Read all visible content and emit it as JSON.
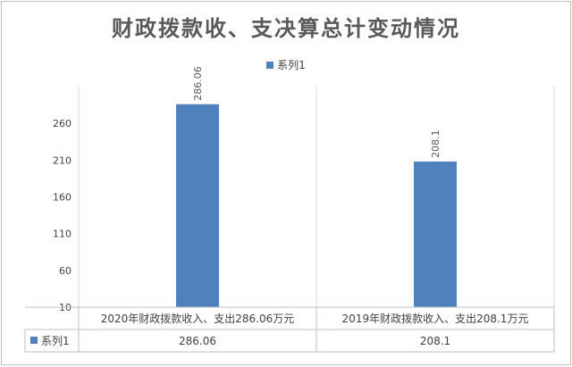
{
  "chart_data": {
    "type": "bar",
    "title": "财政拨款收、支决算总计变动情况",
    "categories": [
      "2020年财政拨款收入、支出286.06万元",
      "2019年财政拨款收入、支出208.1万元"
    ],
    "series": [
      {
        "name": "系列1",
        "values": [
          286.06,
          208.1
        ],
        "color": "#4f81bd"
      }
    ],
    "data_labels": [
      "286.06",
      "208.1"
    ],
    "table_values": [
      "286.06",
      "208.1"
    ],
    "yticks": [
      10,
      60,
      110,
      160,
      210,
      260
    ],
    "ylim": [
      10,
      310
    ],
    "grid": true,
    "legend_position": "top",
    "data_table": true
  }
}
